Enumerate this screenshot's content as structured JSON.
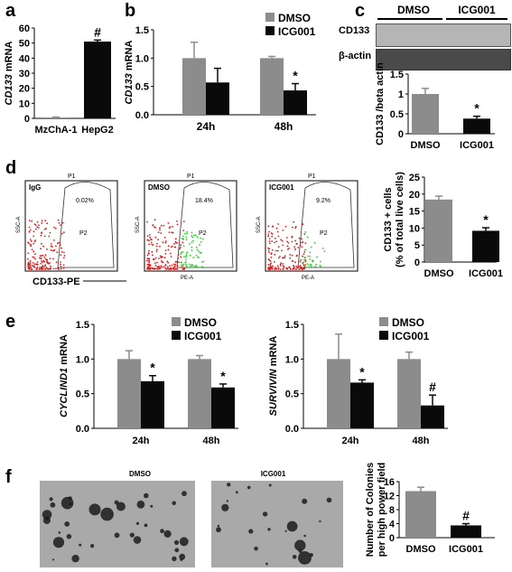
{
  "panel_labels": [
    "a",
    "b",
    "c",
    "d",
    "e",
    "f"
  ],
  "colors": {
    "dmso": "#8c8c8c",
    "icg": "#0a0a0a",
    "red_dots": "#e31a1c",
    "green_dots": "#2bd12b"
  },
  "blot": {
    "headers": [
      "DMSO",
      "ICG001"
    ],
    "rows": [
      "CD133",
      "β-actin"
    ]
  },
  "flow": {
    "plots": [
      {
        "name": "IgG",
        "gate": "P1",
        "subgate": "P2",
        "percent": "0.02%",
        "y_axis": "SSC-A",
        "x_axis": ""
      },
      {
        "name": "DMSO",
        "gate": "P1",
        "subgate": "P2",
        "percent": "18.4%",
        "y_axis": "SSC-A",
        "x_axis": "PE-A"
      },
      {
        "name": "ICG001",
        "gate": "P1",
        "subgate": "P2",
        "percent": "9.2%",
        "y_axis": "SSC-A",
        "x_axis": "PE-A"
      }
    ],
    "marker_label": "CD133-PE"
  },
  "colony_images": {
    "dmso_label": "DMSO",
    "icg_label": "ICG001"
  },
  "chart_data": [
    {
      "id": "a",
      "type": "bar",
      "categories": [
        "MzChA-1",
        "HepG2"
      ],
      "values": [
        0.6,
        51
      ],
      "errors": [
        0.3,
        1
      ],
      "annotations": [
        "",
        "#"
      ],
      "ylabel": "CD133 mRNA",
      "ylim": [
        0,
        60
      ],
      "yticks": [
        "0",
        "10",
        "20",
        "30",
        "40",
        "50",
        "60"
      ]
    },
    {
      "id": "b",
      "type": "bar",
      "categories": [
        "24h",
        "48h"
      ],
      "series": [
        {
          "name": "DMSO",
          "values": [
            1.0,
            1.0
          ],
          "errors": [
            0.28,
            0.03
          ]
        },
        {
          "name": "ICG001",
          "values": [
            0.57,
            0.43
          ],
          "errors": [
            0.25,
            0.12
          ]
        }
      ],
      "annotations": [
        "",
        "*"
      ],
      "ylabel": "CD133 mRNA",
      "ylim": [
        0,
        1.5
      ],
      "yticks": [
        "0.0",
        "0.5",
        "1.0",
        "1.5"
      ]
    },
    {
      "id": "c",
      "type": "bar",
      "categories": [
        "DMSO",
        "ICG001"
      ],
      "values": [
        1.0,
        0.38
      ],
      "errors": [
        0.14,
        0.06
      ],
      "annotations": [
        "",
        "*"
      ],
      "ylabel": "CD133 /beta actin",
      "ylim": [
        0,
        1.5
      ],
      "yticks": [
        "0",
        "0.5",
        "1",
        "1.5"
      ]
    },
    {
      "id": "d",
      "type": "bar",
      "categories": [
        "DMSO",
        "ICG001"
      ],
      "values": [
        18.4,
        9.2
      ],
      "errors": [
        1.0,
        0.9
      ],
      "annotations": [
        "",
        "*"
      ],
      "ylabel": "CD133 + cells",
      "ylabel2": "(% of total live cells)",
      "ylim": [
        0,
        25
      ],
      "yticks": [
        "0",
        "5",
        "10",
        "15",
        "20",
        "25"
      ]
    },
    {
      "id": "e1",
      "type": "bar",
      "categories": [
        "24h",
        "48h"
      ],
      "series": [
        {
          "name": "DMSO",
          "values": [
            1.0,
            1.0
          ],
          "errors": [
            0.12,
            0.05
          ]
        },
        {
          "name": "ICG001",
          "values": [
            0.68,
            0.59
          ],
          "errors": [
            0.08,
            0.05
          ]
        }
      ],
      "annotations": [
        "*",
        "*"
      ],
      "ylabel_gene": "CYCLIND1",
      "ylabel_suffix": " mRNA",
      "ylim": [
        0,
        1.5
      ],
      "yticks": [
        "0.0",
        "0.5",
        "1.0",
        "1.5"
      ]
    },
    {
      "id": "e2",
      "type": "bar",
      "categories": [
        "24h",
        "48h"
      ],
      "series": [
        {
          "name": "DMSO",
          "values": [
            1.0,
            1.0
          ],
          "errors": [
            0.36,
            0.1
          ]
        },
        {
          "name": "ICG001",
          "values": [
            0.66,
            0.33
          ],
          "errors": [
            0.04,
            0.15
          ]
        }
      ],
      "annotations": [
        "*",
        "#"
      ],
      "ylabel_gene": "SURVIVIN",
      "ylabel_suffix": " mRNA",
      "ylim": [
        0,
        1.5
      ],
      "yticks": [
        "0.0",
        "0.5",
        "1.0",
        "1.5"
      ]
    },
    {
      "id": "f",
      "type": "bar",
      "categories": [
        "DMSO",
        "ICG001"
      ],
      "values": [
        13.3,
        3.5
      ],
      "errors": [
        1.1,
        0.5
      ],
      "annotations": [
        "",
        "#"
      ],
      "ylabel": "Number of Colonies",
      "ylabel2": "per high power field",
      "ylim": [
        0,
        16
      ],
      "yticks": [
        "0",
        "4",
        "8",
        "12",
        "16"
      ]
    }
  ]
}
